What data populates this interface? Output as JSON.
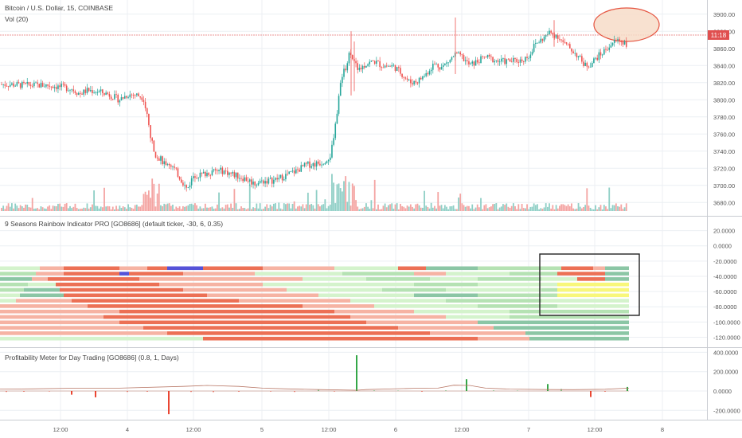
{
  "colors": {
    "up": "#26a69a",
    "down": "#ef5350",
    "vol_up": "#8fcfc6",
    "vol_down": "#f4a4a2",
    "price_line": "#e57373",
    "price_tag": "#e04f4f",
    "grid": "#eceff3",
    "separator": "#c9ccd1",
    "axis_text": "#555555",
    "rb_dark_green": "#8bc6a5",
    "rb_green": "#b5e2b3",
    "rb_light_green": "#d4f3cc",
    "rb_salmon": "#f6b3a3",
    "rb_red": "#ec7055",
    "rb_blue": "#5552d8",
    "rb_yellow": "#f8f77a",
    "meter_up": "#1e9d33",
    "meter_down": "#e8321c",
    "meter_line": "#b97867",
    "ellipse_fill": "#f7dcc8",
    "ellipse_stroke": "#e5533f",
    "box": "#222222"
  },
  "price_pane": {
    "legend_title": "Bitcoin / U.S. Dollar, 15, COINBASE",
    "legend_volume": "Vol (20)",
    "price_label": "11:18",
    "y_ticks": [
      "3900.00",
      "3880.00",
      "3860.00",
      "3840.00",
      "3820.00",
      "3800.00",
      "3780.00",
      "3760.00",
      "3740.00",
      "3720.00",
      "3700.00",
      "3680.00"
    ]
  },
  "rainbow_pane": {
    "title": "9 Seasons Rainbow Indicator PRO [GO8686] (default ticker, -30, 6, 0.35)",
    "y_ticks": [
      "20.0000",
      "0.0000",
      "-20.0000",
      "-40.0000",
      "-60.0000",
      "-80.0000",
      "-100.0000",
      "-120.0000"
    ]
  },
  "meter_pane": {
    "title": "Profitability Meter for Day Trading [GO8686] (0.8, 1, Days)",
    "y_ticks": [
      "400.0000",
      "200.0000",
      "0.0000",
      "-200.0000"
    ]
  },
  "x_axis": {
    "labels": [
      "12:00",
      "4",
      "12:00",
      "5",
      "12:00",
      "6",
      "12:00",
      "7",
      "12:00",
      "8"
    ]
  },
  "chart_data": [
    {
      "type": "candlestick",
      "title": "Bitcoin / U.S. Dollar, 15, COINBASE",
      "ylim": [
        3670,
        3910
      ],
      "x_ticks": [
        "12:00",
        "4",
        "12:00",
        "5",
        "12:00",
        "6",
        "12:00",
        "7",
        "12:00",
        "8"
      ],
      "last_price": 3863,
      "price_path": [
        [
          0,
          3818
        ],
        [
          10,
          3818
        ],
        [
          30,
          3817
        ],
        [
          60,
          3817
        ],
        [
          90,
          3813
        ],
        [
          100,
          3807
        ],
        [
          110,
          3811
        ],
        [
          120,
          3810
        ],
        [
          135,
          3807
        ],
        [
          150,
          3800
        ],
        [
          160,
          3806
        ],
        [
          170,
          3806
        ],
        [
          180,
          3803
        ],
        [
          185,
          3780
        ],
        [
          190,
          3752
        ],
        [
          196,
          3735
        ],
        [
          205,
          3728
        ],
        [
          215,
          3724
        ],
        [
          222,
          3715
        ],
        [
          228,
          3706
        ],
        [
          235,
          3695
        ],
        [
          243,
          3712
        ],
        [
          252,
          3712
        ],
        [
          265,
          3716
        ],
        [
          280,
          3717
        ],
        [
          295,
          3712
        ],
        [
          310,
          3707
        ],
        [
          320,
          3702
        ],
        [
          330,
          3705
        ],
        [
          345,
          3706
        ],
        [
          360,
          3712
        ],
        [
          372,
          3717
        ],
        [
          385,
          3724
        ],
        [
          395,
          3725
        ],
        [
          405,
          3727
        ],
        [
          415,
          3735
        ],
        [
          420,
          3760
        ],
        [
          425,
          3800
        ],
        [
          430,
          3830
        ],
        [
          435,
          3840
        ],
        [
          440,
          3858
        ],
        [
          446,
          3840
        ],
        [
          452,
          3836
        ],
        [
          460,
          3842
        ],
        [
          470,
          3845
        ],
        [
          480,
          3840
        ],
        [
          495,
          3839
        ],
        [
          505,
          3830
        ],
        [
          515,
          3820
        ],
        [
          525,
          3822
        ],
        [
          535,
          3830
        ],
        [
          545,
          3842
        ],
        [
          555,
          3838
        ],
        [
          565,
          3846
        ],
        [
          572,
          3853
        ],
        [
          580,
          3850
        ],
        [
          590,
          3840
        ],
        [
          600,
          3845
        ],
        [
          610,
          3850
        ],
        [
          625,
          3845
        ],
        [
          640,
          3845
        ],
        [
          655,
          3846
        ],
        [
          665,
          3852
        ],
        [
          672,
          3865
        ],
        [
          680,
          3870
        ],
        [
          690,
          3878
        ],
        [
          700,
          3875
        ],
        [
          708,
          3866
        ],
        [
          716,
          3860
        ],
        [
          725,
          3852
        ],
        [
          735,
          3840
        ],
        [
          742,
          3842
        ],
        [
          750,
          3850
        ],
        [
          756,
          3854
        ],
        [
          762,
          3860
        ],
        [
          768,
          3865
        ],
        [
          775,
          3870
        ],
        [
          782,
          3868
        ],
        [
          788,
          3865
        ]
      ]
    },
    {
      "type": "heatmap",
      "title": "9 Seasons Rainbow Indicator PRO [GO8686] (default ticker, -30, 6, 0.35)",
      "ylim": [
        -130,
        30
      ],
      "rows": 15
    },
    {
      "type": "bar",
      "title": "Profitability Meter for Day Trading [GO8686] (0.8, 1, Days)",
      "ylim": [
        -280,
        420
      ],
      "spikes": [
        [
          8,
          -10
        ],
        [
          30,
          -8
        ],
        [
          62,
          -5
        ],
        [
          90,
          -38
        ],
        [
          120,
          -65
        ],
        [
          160,
          -10
        ],
        [
          185,
          -8
        ],
        [
          212,
          -240
        ],
        [
          240,
          -10
        ],
        [
          268,
          -12
        ],
        [
          300,
          -8
        ],
        [
          340,
          -6
        ],
        [
          370,
          -10
        ],
        [
          400,
          12
        ],
        [
          420,
          -6
        ],
        [
          448,
          370
        ],
        [
          470,
          6
        ],
        [
          500,
          4
        ],
        [
          530,
          -8
        ],
        [
          560,
          6
        ],
        [
          586,
          122
        ],
        [
          620,
          6
        ],
        [
          650,
          4
        ],
        [
          688,
          72
        ],
        [
          705,
          22
        ],
        [
          742,
          -62
        ],
        [
          760,
          -8
        ],
        [
          788,
          42
        ]
      ],
      "line": [
        [
          0,
          20
        ],
        [
          40,
          22
        ],
        [
          100,
          30
        ],
        [
          150,
          30
        ],
        [
          230,
          48
        ],
        [
          260,
          58
        ],
        [
          300,
          48
        ],
        [
          330,
          30
        ],
        [
          360,
          22
        ],
        [
          400,
          15
        ],
        [
          448,
          8
        ],
        [
          460,
          15
        ],
        [
          520,
          28
        ],
        [
          550,
          30
        ],
        [
          570,
          60
        ],
        [
          590,
          58
        ],
        [
          610,
          30
        ],
        [
          640,
          20
        ],
        [
          690,
          15
        ],
        [
          720,
          14
        ],
        [
          760,
          18
        ],
        [
          790,
          30
        ]
      ]
    }
  ]
}
